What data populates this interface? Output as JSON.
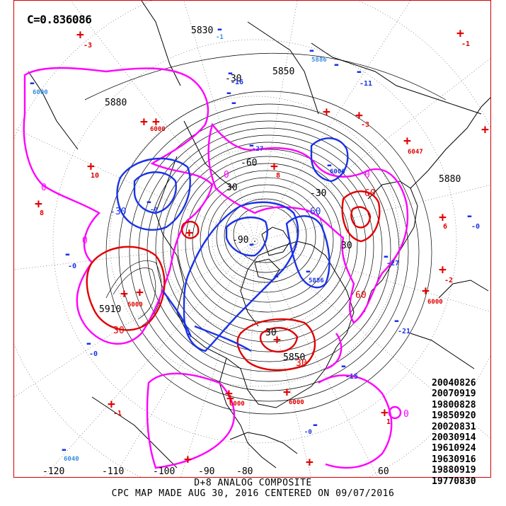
{
  "header": {
    "correlation_label": "C=0.836086"
  },
  "analog_dates": [
    "20040826",
    "20070919",
    "19800828",
    "19850920",
    "20020831",
    "20030914",
    "19610924",
    "19630916",
    "19880919",
    "19770830"
  ],
  "footer": {
    "line1": "D+8 ANALOG COMPOSITE",
    "line2": "CPC MAP MADE AUG 30, 2016 CENTERED ON 09/07/2016"
  },
  "longitude_labels": [
    "-120",
    "-110",
    "-100",
    "-90",
    "-80",
    "60"
  ],
  "height_labels": [
    "5880",
    "5830",
    "5850",
    "5880",
    "5910",
    "5850"
  ],
  "anomaly_labels": [
    "30",
    "-30",
    "-30",
    "60",
    "-60",
    "-60",
    "-30",
    "30",
    "60",
    "90",
    "-90",
    "30",
    "30",
    "0",
    "0",
    "0",
    "0",
    "0"
  ],
  "plus_values": [
    "-3",
    "-1",
    "10",
    "8",
    "-3",
    "8",
    "6",
    "-2",
    "-1",
    "-0",
    "-0",
    "-1",
    "0",
    "1",
    "10",
    "4",
    "8"
  ],
  "minus_values": [
    "-1",
    "-6",
    "-0",
    "-0",
    "-0",
    "-15",
    "-21",
    "-27",
    "-11",
    "-15",
    "-16",
    "-0"
  ],
  "station_values": [
    "5880",
    "5880",
    "5880",
    "5880",
    "5880",
    "5880",
    "6040"
  ],
  "colors": {
    "positive": "#e00000",
    "negative": "#1a33e6",
    "negative_light": "#3a8de0",
    "zero": "#ff00ff",
    "height": "#000000",
    "border": "#d40000"
  }
}
